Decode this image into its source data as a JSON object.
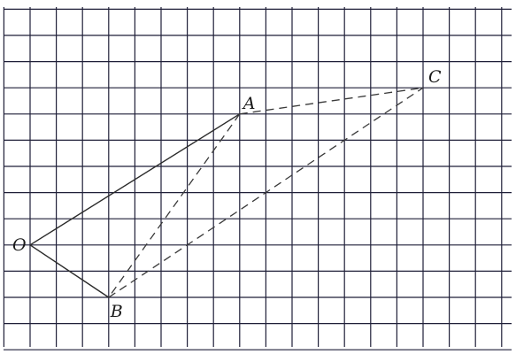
{
  "diagram": {
    "grid": {
      "columns": 19,
      "rows": 12,
      "line_color": "#1f1f38"
    },
    "points": {
      "O": {
        "label": "O",
        "col": 0,
        "row": 8
      },
      "A": {
        "label": "A",
        "col": 8,
        "row": 3
      },
      "B": {
        "label": "B",
        "col": 3,
        "row": 10
      },
      "C": {
        "label": "C",
        "col": 15,
        "row": 2
      }
    },
    "segments": [
      {
        "id": "OA",
        "from": "O",
        "to": "A",
        "style": "solid"
      },
      {
        "id": "OB",
        "from": "O",
        "to": "B",
        "style": "solid"
      },
      {
        "id": "AC",
        "from": "A",
        "to": "C",
        "style": "dashed"
      },
      {
        "id": "AB",
        "from": "A",
        "to": "B",
        "style": "dashed"
      },
      {
        "id": "BC",
        "from": "B",
        "to": "C",
        "style": "dashed"
      }
    ]
  }
}
